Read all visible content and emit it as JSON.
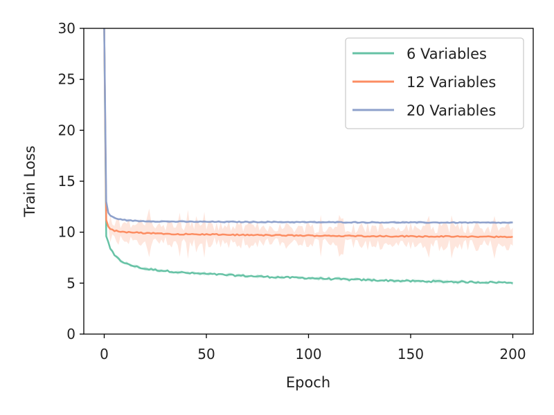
{
  "chart_data": {
    "type": "line",
    "title": "",
    "xlabel": "Epoch",
    "ylabel": "Train Loss",
    "xlim": [
      -10,
      210
    ],
    "ylim": [
      0,
      30
    ],
    "xticks": [
      0,
      50,
      100,
      150,
      200
    ],
    "yticks": [
      0,
      5,
      10,
      15,
      20,
      25,
      30
    ],
    "grid": false,
    "legend_position": "top-right",
    "series": [
      {
        "name": "6 Variables",
        "color": "#66c2a5",
        "x": [
          0,
          1,
          2,
          3,
          5,
          8,
          12,
          16,
          20,
          25,
          30,
          35,
          40,
          45,
          50,
          55,
          60,
          70,
          80,
          90,
          100,
          110,
          120,
          130,
          140,
          150,
          160,
          170,
          180,
          190,
          200
        ],
        "values": [
          30,
          9.6,
          9.0,
          8.4,
          7.7,
          7.2,
          6.8,
          6.6,
          6.4,
          6.3,
          6.2,
          6.1,
          6.0,
          5.95,
          5.9,
          5.85,
          5.8,
          5.7,
          5.62,
          5.55,
          5.5,
          5.42,
          5.35,
          5.3,
          5.25,
          5.2,
          5.17,
          5.14,
          5.1,
          5.08,
          5.05
        ],
        "noise": 0.08,
        "band": 0.15
      },
      {
        "name": "12 Variables",
        "color": "#fc8d62",
        "x": [
          0,
          1,
          2,
          3,
          5,
          8,
          12,
          16,
          20,
          30,
          40,
          50,
          60,
          70,
          80,
          90,
          100,
          110,
          120,
          130,
          140,
          150,
          160,
          170,
          180,
          190,
          200
        ],
        "values": [
          30,
          11.2,
          10.6,
          10.3,
          10.15,
          10.05,
          10.0,
          9.95,
          9.9,
          9.85,
          9.8,
          9.78,
          9.75,
          9.72,
          9.7,
          9.68,
          9.66,
          9.65,
          9.63,
          9.62,
          9.6,
          9.6,
          9.58,
          9.57,
          9.55,
          9.55,
          9.55
        ],
        "noise": 0.06,
        "band": 0.9
      },
      {
        "name": "20 Variables",
        "color": "#8da0cb",
        "x": [
          0,
          1,
          2,
          3,
          5,
          8,
          12,
          16,
          20,
          30,
          40,
          50,
          60,
          70,
          80,
          90,
          100,
          110,
          120,
          130,
          140,
          150,
          160,
          170,
          180,
          190,
          200
        ],
        "values": [
          30,
          13.0,
          11.9,
          11.6,
          11.4,
          11.25,
          11.15,
          11.1,
          11.08,
          11.05,
          11.03,
          11.02,
          11.01,
          11.0,
          11.0,
          10.99,
          10.98,
          10.97,
          10.97,
          10.96,
          10.96,
          10.95,
          10.95,
          10.94,
          10.94,
          10.93,
          10.93
        ],
        "noise": 0.04,
        "band": 0.12
      }
    ]
  }
}
